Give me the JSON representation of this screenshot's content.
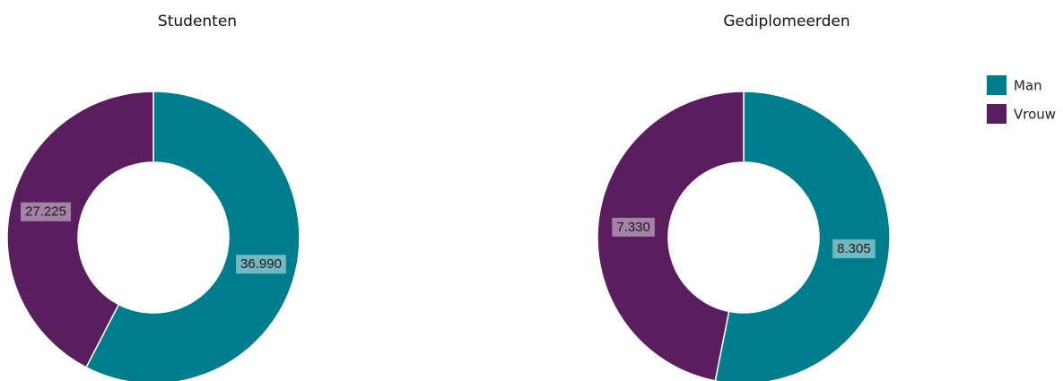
{
  "chart_data": [
    {
      "type": "donut",
      "title": "Studenten",
      "categories": [
        "Man",
        "Vrouw"
      ],
      "values": [
        36990,
        27225
      ],
      "value_labels": [
        "36.990",
        "27.225"
      ],
      "colors": [
        "#007d8c",
        "#5a1e5f"
      ]
    },
    {
      "type": "donut",
      "title": "Gediplomeerden",
      "categories": [
        "Man",
        "Vrouw"
      ],
      "values": [
        8305,
        7330
      ],
      "value_labels": [
        "8.305",
        "7.330"
      ],
      "colors": [
        "#007d8c",
        "#5a1e5f"
      ]
    }
  ]
}
